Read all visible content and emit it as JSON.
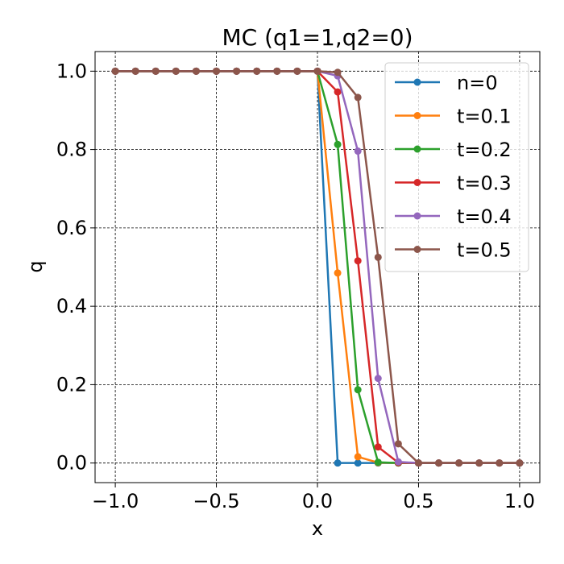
{
  "chart_data": {
    "type": "line",
    "title": "MC (q1=1,q2=0)",
    "xlabel": "x",
    "ylabel": "q",
    "xlim": [
      -1.1,
      1.1
    ],
    "ylim": [
      -0.05,
      1.05
    ],
    "xticks": [
      "−1.0",
      "−0.5",
      "0.0",
      "0.5",
      "1.0"
    ],
    "xtick_values": [
      -1.0,
      -0.5,
      0.0,
      0.5,
      1.0
    ],
    "yticks": [
      "0.0",
      "0.2",
      "0.4",
      "0.6",
      "0.8",
      "1.0"
    ],
    "ytick_values": [
      0.0,
      0.2,
      0.4,
      0.6,
      0.8,
      1.0
    ],
    "grid": true,
    "legend_position": "top-right",
    "x": [
      -1.0,
      -0.9,
      -0.8,
      -0.7,
      -0.6,
      -0.5,
      -0.4,
      -0.3,
      -0.2,
      -0.1,
      0.0,
      0.1,
      0.2,
      0.3,
      0.4,
      0.5,
      0.6,
      0.7,
      0.8,
      0.9,
      1.0
    ],
    "series": [
      {
        "name": "n=0",
        "color": "#1f77b4",
        "values": [
          1,
          1,
          1,
          1,
          1,
          1,
          1,
          1,
          1,
          1,
          1,
          0,
          0,
          0,
          0,
          0,
          0,
          0,
          0,
          0,
          0
        ]
      },
      {
        "name": "t=0.1",
        "color": "#ff7f0e",
        "values": [
          1,
          1,
          1,
          1,
          1,
          1,
          1,
          1,
          1,
          1,
          1,
          0.485,
          0.016,
          0.001,
          0,
          0,
          0,
          0,
          0,
          0,
          0
        ]
      },
      {
        "name": "t=0.2",
        "color": "#2ca02c",
        "values": [
          1,
          1,
          1,
          1,
          1,
          1,
          1,
          1,
          1,
          1,
          1,
          0.813,
          0.187,
          0.002,
          0,
          0,
          0,
          0,
          0,
          0,
          0
        ]
      },
      {
        "name": "t=0.3",
        "color": "#d62728",
        "values": [
          1,
          1,
          1,
          1,
          1,
          1,
          1,
          1,
          1,
          1,
          1,
          0.947,
          0.516,
          0.041,
          0.001,
          0,
          0,
          0,
          0,
          0,
          0
        ]
      },
      {
        "name": "t=0.4",
        "color": "#9467bd",
        "values": [
          1,
          1,
          1,
          1,
          1,
          1,
          1,
          1,
          1,
          1,
          1,
          0.988,
          0.796,
          0.216,
          0.003,
          0,
          0,
          0,
          0,
          0,
          0
        ]
      },
      {
        "name": "t=0.5",
        "color": "#8c564b",
        "values": [
          1,
          1,
          1,
          1,
          1,
          1,
          1,
          1,
          1,
          1,
          1,
          0.997,
          0.933,
          0.525,
          0.049,
          0,
          0,
          0,
          0,
          0,
          0
        ]
      }
    ]
  }
}
